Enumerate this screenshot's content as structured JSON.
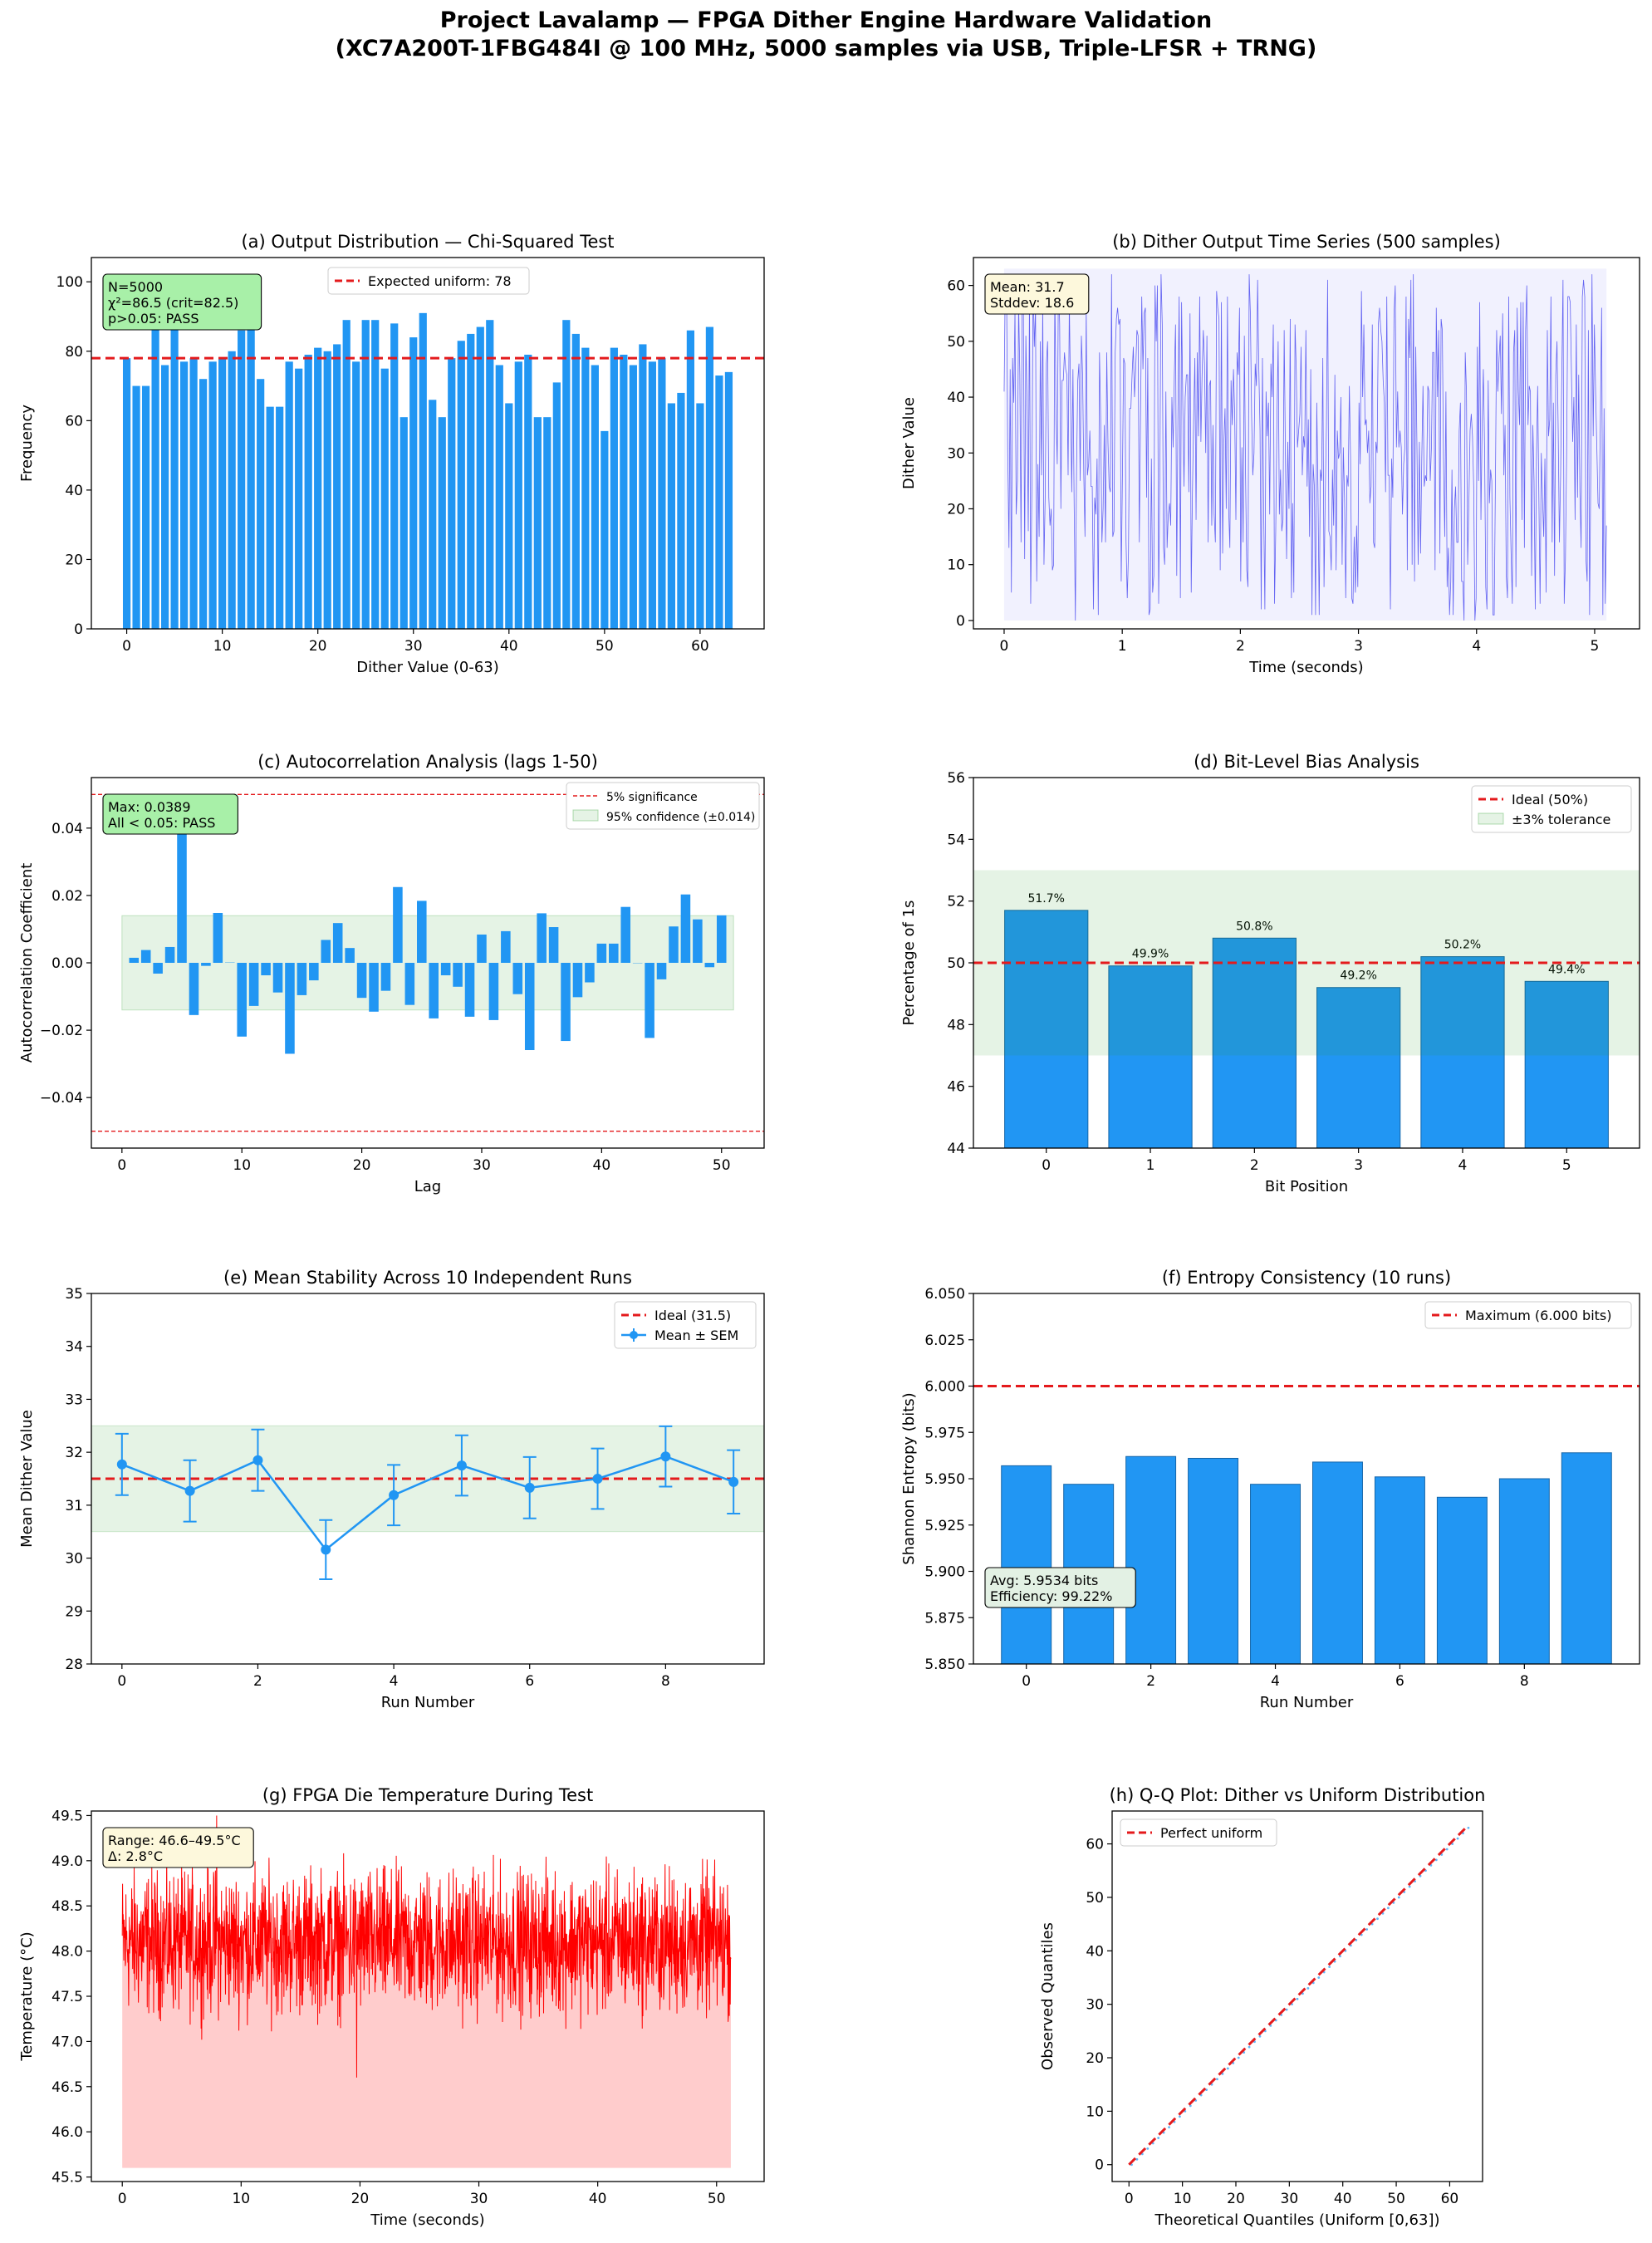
{
  "figure": {
    "title_line1": "Project Lavalamp — FPGA Dither Engine Hardware Validation",
    "title_line2": "(XC7A200T-1FBG484I @ 100 MHz, 5000 samples via USB, Triple-LFSR + TRNG)"
  },
  "colors": {
    "bar": "#2196F3",
    "ideal": "#e41a1c",
    "band": "#2ca02c",
    "temp": "#ff0000",
    "series": "#4a4af0"
  },
  "chart_data": [
    {
      "id": "a",
      "type": "bar",
      "title": "(a) Output Distribution — Chi-Squared Test",
      "xlabel": "Dither Value (0-63)",
      "ylabel": "Frequency",
      "xlim": [
        -3.7,
        66.7
      ],
      "ylim": [
        0,
        107
      ],
      "xticks": [
        0,
        10,
        20,
        30,
        40,
        50,
        60
      ],
      "yticks": [
        0,
        20,
        40,
        60,
        80,
        100
      ],
      "x": [
        0,
        1,
        2,
        3,
        4,
        5,
        6,
        7,
        8,
        9,
        10,
        11,
        12,
        13,
        14,
        15,
        16,
        17,
        18,
        19,
        20,
        21,
        22,
        23,
        24,
        25,
        26,
        27,
        28,
        29,
        30,
        31,
        32,
        33,
        34,
        35,
        36,
        37,
        38,
        39,
        40,
        41,
        42,
        43,
        44,
        45,
        46,
        47,
        48,
        49,
        50,
        51,
        52,
        53,
        54,
        55,
        56,
        57,
        58,
        59,
        60,
        61,
        62,
        63
      ],
      "values": [
        78,
        70,
        70,
        88,
        76,
        87,
        77,
        78,
        72,
        77,
        78,
        80,
        86,
        93,
        72,
        64,
        64,
        77,
        75,
        79,
        81,
        80,
        82,
        89,
        77,
        89,
        89,
        75,
        88,
        61,
        84,
        91,
        66,
        61,
        78,
        83,
        85,
        87,
        89,
        76,
        65,
        77,
        79,
        61,
        61,
        71,
        89,
        85,
        81,
        76,
        57,
        81,
        79,
        76,
        82,
        77,
        78,
        65,
        68,
        86,
        65,
        87,
        73,
        74
      ],
      "hline": {
        "value": 78,
        "label": "Expected uniform: 78"
      },
      "legend_loc": "upper-center",
      "annotation": [
        "N=5000",
        "χ²=86.5 (crit=82.5)",
        "p>0.05: PASS"
      ],
      "annotation_style": "pass"
    },
    {
      "id": "b",
      "type": "line",
      "title": "(b) Dither Output Time Series (500 samples)",
      "xlabel": "Time (seconds)",
      "ylabel": "Dither Value",
      "xlim": [
        -0.26,
        5.38
      ],
      "ylim": [
        -1.5,
        65.0
      ],
      "xticks": [
        0,
        1,
        2,
        3,
        4,
        5
      ],
      "yticks": [
        0,
        10,
        20,
        30,
        40,
        50,
        60
      ],
      "samples": 500,
      "x_range": [
        0,
        5.1
      ],
      "band": [
        0,
        63
      ],
      "values": [
        41,
        62,
        60,
        30,
        13,
        45,
        5,
        47,
        39,
        56,
        19,
        25,
        57,
        44,
        14,
        61,
        55,
        11,
        51,
        39,
        16,
        59,
        3,
        24,
        61,
        49,
        56,
        7,
        28,
        15,
        50,
        26,
        57,
        10,
        22,
        46,
        50,
        22,
        17,
        20,
        9,
        10,
        60,
        37,
        28,
        62,
        53,
        20,
        43,
        43,
        48,
        45,
        44,
        26,
        57,
        41,
        23,
        45,
        21,
        0,
        27,
        43,
        46,
        25,
        51,
        44,
        26,
        15,
        56,
        26,
        28,
        34,
        24,
        24,
        2,
        22,
        19,
        29,
        1,
        48,
        36,
        14,
        20,
        35,
        14,
        48,
        32,
        24,
        23,
        62,
        15,
        16,
        48,
        54,
        56,
        53,
        54,
        7,
        26,
        47,
        46,
        14,
        4,
        12,
        38,
        38,
        44,
        49,
        40,
        45,
        52,
        51,
        14,
        37,
        58,
        45,
        55,
        56,
        22,
        47,
        1,
        2,
        29,
        5,
        8,
        60,
        50,
        60,
        3,
        26,
        62,
        53,
        13,
        10,
        41,
        13,
        19,
        21,
        17,
        40,
        31,
        44,
        53,
        8,
        37,
        58,
        4,
        57,
        39,
        24,
        40,
        44,
        44,
        23,
        55,
        5,
        23,
        36,
        47,
        18,
        48,
        33,
        58,
        32,
        44,
        52,
        46,
        30,
        51,
        14,
        42,
        43,
        17,
        35,
        19,
        14,
        59,
        56,
        54,
        9,
        57,
        12,
        32,
        38,
        20,
        58,
        20,
        13,
        43,
        35,
        45,
        37,
        18,
        48,
        44,
        56,
        7,
        31,
        14,
        51,
        26,
        9,
        6,
        62,
        55,
        37,
        26,
        30,
        46,
        42,
        61,
        45,
        34,
        2,
        47,
        20,
        2,
        41,
        33,
        39,
        19,
        46,
        40,
        53,
        3,
        16,
        36,
        50,
        19,
        27,
        16,
        18,
        52,
        30,
        11,
        32,
        20,
        54,
        4,
        21,
        5,
        53,
        45,
        31,
        34,
        37,
        49,
        26,
        33,
        31,
        52,
        24,
        36,
        15,
        45,
        1,
        28,
        24,
        1,
        39,
        23,
        1,
        27,
        25,
        47,
        6,
        22,
        35,
        61,
        16,
        15,
        9,
        27,
        17,
        44,
        9,
        34,
        29,
        30,
        40,
        10,
        31,
        22,
        4,
        26,
        24,
        42,
        29,
        4,
        3,
        15,
        5,
        17,
        6,
        39,
        28,
        59,
        40,
        53,
        35,
        36,
        30,
        34,
        21,
        24,
        53,
        14,
        13,
        32,
        30,
        53,
        56,
        52,
        50,
        43,
        39,
        23,
        58,
        26,
        26,
        2,
        29,
        22,
        55,
        60,
        31,
        41,
        31,
        34,
        31,
        19,
        28,
        31,
        58,
        9,
        54,
        47,
        61,
        10,
        62,
        7,
        49,
        31,
        10,
        32,
        12,
        29,
        42,
        24,
        26,
        25,
        42,
        41,
        25,
        31,
        48,
        48,
        9,
        56,
        40,
        52,
        12,
        54,
        52,
        29,
        15,
        41,
        6,
        13,
        1,
        7,
        27,
        1,
        20,
        24,
        14,
        14,
        34,
        39,
        7,
        7,
        0,
        48,
        41,
        10,
        21,
        34,
        37,
        33,
        24,
        0,
        4,
        49,
        25,
        57,
        18,
        35,
        45,
        31,
        6,
        2,
        43,
        21,
        27,
        25,
        1,
        1,
        25,
        52,
        41,
        47,
        51,
        37,
        55,
        26,
        35,
        8,
        4,
        58,
        22,
        12,
        3,
        48,
        52,
        6,
        56,
        41,
        35,
        57,
        18,
        57,
        13,
        52,
        60,
        35,
        42,
        41,
        8,
        35,
        25,
        2,
        29,
        42,
        22,
        3,
        30,
        22,
        15,
        29,
        5,
        52,
        33,
        36,
        58,
        14,
        39,
        8,
        44,
        50,
        34,
        14,
        26,
        44,
        61,
        3,
        11,
        30,
        58,
        58,
        57,
        44,
        32,
        40,
        18,
        53,
        22,
        44,
        23,
        13,
        58,
        61,
        58,
        11,
        7,
        52,
        1,
        26,
        62,
        33,
        53,
        41,
        31,
        21,
        20,
        37,
        56,
        1,
        38,
        3,
        17
      ],
      "annotation": [
        "Mean: 31.7",
        "Stddev: 18.6"
      ],
      "annotation_style": "info"
    },
    {
      "id": "c",
      "type": "bar",
      "title": "(c) Autocorrelation Analysis (lags 1-50)",
      "xlabel": "Lag",
      "ylabel": "Autocorrelation Coefficient",
      "xlim": [
        -2.55,
        53.55
      ],
      "ylim": [
        -0.055,
        0.055
      ],
      "xticks": [
        0,
        10,
        20,
        30,
        40,
        50
      ],
      "yticks": [
        -0.04,
        -0.02,
        0.0,
        0.02,
        0.04
      ],
      "ytick_labels": [
        "−0.04",
        "−0.02",
        "0.00",
        "0.02",
        "0.04"
      ],
      "x": [
        1,
        2,
        3,
        4,
        5,
        6,
        7,
        8,
        9,
        10,
        11,
        12,
        13,
        14,
        15,
        16,
        17,
        18,
        19,
        20,
        21,
        22,
        23,
        24,
        25,
        26,
        27,
        28,
        29,
        30,
        31,
        32,
        33,
        34,
        35,
        36,
        37,
        38,
        39,
        40,
        41,
        42,
        43,
        44,
        45,
        46,
        47,
        48,
        49,
        50
      ],
      "values": [
        0.0015,
        0.0038,
        -0.0032,
        0.0047,
        0.0389,
        -0.0155,
        -0.0009,
        0.0148,
        0.0001,
        -0.0219,
        -0.0128,
        -0.0037,
        -0.0088,
        -0.027,
        -0.0096,
        -0.0052,
        0.0068,
        0.0118,
        0.0044,
        -0.0104,
        -0.0145,
        -0.0083,
        0.0225,
        -0.0125,
        0.0184,
        -0.0165,
        -0.0037,
        -0.0071,
        -0.016,
        0.0084,
        -0.017,
        0.0094,
        -0.0093,
        -0.0259,
        0.0147,
        0.0106,
        -0.0232,
        -0.0102,
        -0.0058,
        0.0057,
        0.0057,
        0.0166,
        -0.0001,
        -0.0223,
        -0.0049,
        0.0108,
        0.0203,
        0.0129,
        -0.0013,
        0.0141
      ],
      "hlines": [
        0.05,
        -0.05
      ],
      "band": [
        -0.014,
        0.014
      ],
      "legend": [
        "5% significance",
        "95% confidence (±0.014)"
      ],
      "legend_loc": "upper-right",
      "annotation": [
        "Max: 0.0389",
        "All < 0.05: PASS"
      ],
      "annotation_style": "pass"
    },
    {
      "id": "d",
      "type": "bar",
      "title": "(d) Bit-Level Bias Analysis",
      "xlabel": "Bit Position",
      "ylabel": "Percentage of 1s",
      "xlim": [
        -0.7,
        5.7
      ],
      "ylim": [
        44,
        56
      ],
      "xticks": [
        0,
        1,
        2,
        3,
        4,
        5
      ],
      "yticks": [
        44,
        46,
        48,
        50,
        52,
        54,
        56
      ],
      "categories": [
        "0",
        "1",
        "2",
        "3",
        "4",
        "5"
      ],
      "values": [
        51.7,
        49.9,
        50.8,
        49.2,
        50.2,
        49.4
      ],
      "labels": [
        "51.7%",
        "49.9%",
        "50.8%",
        "49.2%",
        "50.2%",
        "49.4%"
      ],
      "hline": {
        "value": 50,
        "label": "Ideal (50%)"
      },
      "band": [
        47,
        53
      ],
      "band_label": "±3% tolerance",
      "legend_loc": "upper-right"
    },
    {
      "id": "e",
      "type": "line",
      "title": "(e) Mean Stability Across 10 Independent Runs",
      "xlabel": "Run Number",
      "ylabel": "Mean Dither Value",
      "xlim": [
        -0.45,
        9.45
      ],
      "ylim": [
        28,
        35
      ],
      "xticks": [
        0,
        2,
        4,
        6,
        8
      ],
      "yticks": [
        28,
        29,
        30,
        31,
        32,
        33,
        34,
        35
      ],
      "x": [
        0,
        1,
        2,
        3,
        4,
        5,
        6,
        7,
        8,
        9
      ],
      "values": [
        31.77,
        31.27,
        31.85,
        30.16,
        31.19,
        31.75,
        31.33,
        31.5,
        31.92,
        31.44
      ],
      "errors": [
        0.58,
        0.58,
        0.58,
        0.56,
        0.57,
        0.57,
        0.58,
        0.57,
        0.57,
        0.6
      ],
      "hline": {
        "value": 31.5,
        "label": "Ideal (31.5)"
      },
      "band": [
        30.5,
        32.5
      ],
      "series_label": "Mean ± SEM",
      "legend_loc": "upper-right"
    },
    {
      "id": "f",
      "type": "bar",
      "title": "(f) Entropy Consistency (10 runs)",
      "xlabel": "Run Number",
      "ylabel": "Shannon Entropy (bits)",
      "xlim": [
        -0.85,
        9.85
      ],
      "ylim": [
        5.85,
        6.05
      ],
      "xticks": [
        0,
        2,
        4,
        6,
        8
      ],
      "yticks": [
        5.85,
        5.875,
        5.9,
        5.925,
        5.95,
        5.975,
        6.0,
        6.025,
        6.05
      ],
      "ytick_labels": [
        "5.850",
        "5.875",
        "5.900",
        "5.925",
        "5.950",
        "5.975",
        "6.000",
        "6.025",
        "6.050"
      ],
      "x": [
        0,
        1,
        2,
        3,
        4,
        5,
        6,
        7,
        8,
        9
      ],
      "values": [
        5.957,
        5.947,
        5.962,
        5.961,
        5.947,
        5.959,
        5.951,
        5.94,
        5.95,
        5.964
      ],
      "hline": {
        "value": 6.0,
        "label": "Maximum (6.000 bits)"
      },
      "legend_loc": "upper-right",
      "annotation": [
        "Avg: 5.9534 bits",
        "Efficiency: 99.22%"
      ],
      "annotation_style": "band"
    },
    {
      "id": "g",
      "type": "area",
      "title": "(g) FPGA Die Temperature During Test",
      "xlabel": "Time (seconds)",
      "ylabel": "Temperature (°C)",
      "xlim": [
        -2.6,
        54.0
      ],
      "ylim": [
        45.45,
        49.55
      ],
      "xticks": [
        0,
        10,
        20,
        30,
        40,
        50
      ],
      "yticks": [
        45.5,
        46.0,
        46.5,
        47.0,
        47.5,
        48.0,
        48.5,
        49.0,
        49.5
      ],
      "ytick_labels": [
        "45.5",
        "46.0",
        "46.5",
        "47.0",
        "47.5",
        "48.0",
        "48.5",
        "49.0",
        "49.5"
      ],
      "x_range": [
        0,
        51.2
      ],
      "samples": 5000,
      "mean": 48.1,
      "stddev": 0.38,
      "min": 46.6,
      "max": 49.5,
      "fill_base": 45.6,
      "annotation": [
        "Range: 46.6–49.5°C",
        "Δ: 2.8°C"
      ],
      "annotation_style": "info"
    },
    {
      "id": "h",
      "type": "scatter",
      "title": "(h) Q-Q Plot: Dither vs Uniform Distribution",
      "xlabel": "Theoretical Quantiles (Uniform [0,63])",
      "ylabel": "Observed Quantiles",
      "xlim": [
        -3.15,
        66.15
      ],
      "ylim": [
        -3.15,
        66.15
      ],
      "xticks": [
        0,
        10,
        20,
        30,
        40,
        50,
        60
      ],
      "yticks": [
        0,
        10,
        20,
        30,
        40,
        50,
        60
      ],
      "x": [
        0,
        63
      ],
      "values": [
        0,
        63
      ],
      "reference_label": "Perfect uniform",
      "legend_loc": "upper-left"
    }
  ]
}
